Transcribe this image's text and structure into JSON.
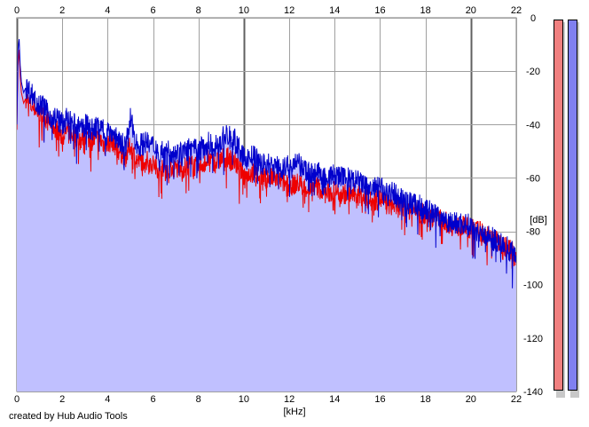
{
  "credit": "created by Hub Audio Tools",
  "chart_data": {
    "type": "area",
    "title": "",
    "xlabel": "[kHz]",
    "ylabel": "[dB]",
    "xlim": [
      0,
      22
    ],
    "ylim": [
      -140,
      0
    ],
    "x_ticks": [
      0,
      2,
      4,
      6,
      8,
      10,
      12,
      14,
      16,
      18,
      20,
      22
    ],
    "y_ticks": [
      0,
      -20,
      -40,
      -60,
      -80,
      -100,
      -120,
      -140
    ],
    "grid": true,
    "fill_color": "#c0c0ff",
    "series": [
      {
        "color": "#ee0000",
        "x": [
          0,
          0.05,
          0.1,
          0.15,
          0.2,
          0.3,
          0.4,
          0.6,
          0.8,
          1.0,
          1.2,
          1.5,
          1.8,
          2.0,
          2.2,
          2.5,
          2.8,
          3.0,
          3.3,
          3.6,
          3.9,
          4.2,
          4.5,
          4.8,
          5.0,
          5.3,
          5.6,
          6.0,
          6.4,
          6.8,
          7.2,
          7.6,
          8.0,
          8.4,
          8.8,
          9.2,
          9.6,
          10.0,
          10.4,
          10.8,
          11.2,
          11.6,
          12.0,
          12.4,
          12.8,
          13.2,
          13.6,
          14.0,
          14.4,
          14.8,
          15.2,
          15.6,
          16.0,
          16.4,
          16.8,
          17.2,
          17.6,
          18.0,
          18.4,
          18.8,
          19.2,
          19.6,
          20.0,
          20.4,
          20.8,
          21.2,
          21.6,
          22.0
        ],
        "y": [
          -42,
          -18,
          -12,
          -22,
          -28,
          -32,
          -30,
          -33,
          -34,
          -36,
          -37,
          -40,
          -42,
          -45,
          -42,
          -44,
          -46,
          -44,
          -46,
          -45,
          -48,
          -46,
          -50,
          -52,
          -48,
          -54,
          -53,
          -55,
          -57,
          -56,
          -57,
          -55,
          -56,
          -53,
          -54,
          -52,
          -54,
          -59,
          -58,
          -60,
          -60,
          -61,
          -63,
          -62,
          -64,
          -63,
          -66,
          -65,
          -66,
          -66,
          -67,
          -69,
          -68,
          -70,
          -71,
          -72,
          -72,
          -74,
          -74,
          -76,
          -78,
          -78,
          -79,
          -80,
          -82,
          -84,
          -86,
          -88
        ]
      },
      {
        "color": "#0000cc",
        "x": [
          0,
          0.05,
          0.1,
          0.15,
          0.2,
          0.3,
          0.4,
          0.6,
          0.8,
          1.0,
          1.2,
          1.5,
          1.8,
          2.0,
          2.2,
          2.5,
          2.8,
          3.0,
          3.3,
          3.6,
          3.9,
          4.2,
          4.5,
          4.8,
          5.0,
          5.3,
          5.6,
          6.0,
          6.4,
          6.8,
          7.2,
          7.6,
          8.0,
          8.4,
          8.8,
          9.2,
          9.6,
          10.0,
          10.4,
          10.8,
          11.2,
          11.6,
          12.0,
          12.4,
          12.8,
          13.2,
          13.6,
          14.0,
          14.4,
          14.8,
          15.2,
          15.6,
          16.0,
          16.4,
          16.8,
          17.2,
          17.6,
          18.0,
          18.4,
          18.8,
          19.2,
          19.6,
          20.0,
          20.4,
          20.8,
          21.2,
          21.6,
          22.0
        ],
        "y": [
          -40,
          -12,
          -8,
          -18,
          -24,
          -28,
          -26,
          -28,
          -30,
          -32,
          -34,
          -37,
          -38,
          -40,
          -38,
          -40,
          -42,
          -40,
          -42,
          -41,
          -42,
          -43,
          -46,
          -48,
          -38,
          -48,
          -47,
          -48,
          -50,
          -50,
          -51,
          -49,
          -50,
          -47,
          -48,
          -44,
          -46,
          -53,
          -52,
          -55,
          -55,
          -56,
          -56,
          -55,
          -58,
          -58,
          -60,
          -59,
          -60,
          -61,
          -62,
          -64,
          -64,
          -65,
          -67,
          -69,
          -70,
          -72,
          -73,
          -75,
          -77,
          -77,
          -78,
          -80,
          -82,
          -84,
          -86,
          -89
        ]
      }
    ]
  },
  "meters": [
    {
      "color": "#f08080"
    },
    {
      "color": "#8080f0"
    }
  ]
}
